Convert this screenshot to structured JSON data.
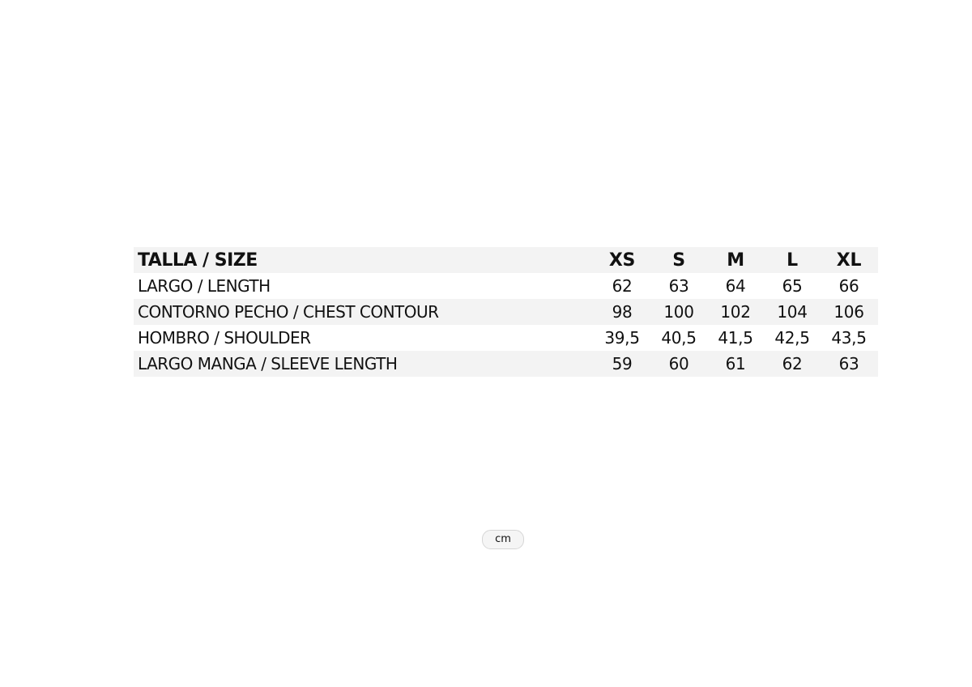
{
  "table": {
    "header": {
      "label": "TALLA / SIZE",
      "sizes": [
        "XS",
        "S",
        "M",
        "L",
        "XL"
      ]
    },
    "rows": [
      {
        "label": "LARGO / LENGTH",
        "values": [
          "62",
          "63",
          "64",
          "65",
          "66"
        ]
      },
      {
        "label": "CONTORNO PECHO / CHEST CONTOUR",
        "values": [
          "98",
          "100",
          "102",
          "104",
          "106"
        ]
      },
      {
        "label": "HOMBRO / SHOULDER",
        "values": [
          "39,5",
          "40,5",
          "41,5",
          "42,5",
          "43,5"
        ]
      },
      {
        "label": "LARGO MANGA / SLEEVE LENGTH",
        "values": [
          "59",
          "60",
          "61",
          "62",
          "63"
        ]
      }
    ],
    "row_shade_color": "#f3f3f3"
  },
  "unit_badge": "cm"
}
